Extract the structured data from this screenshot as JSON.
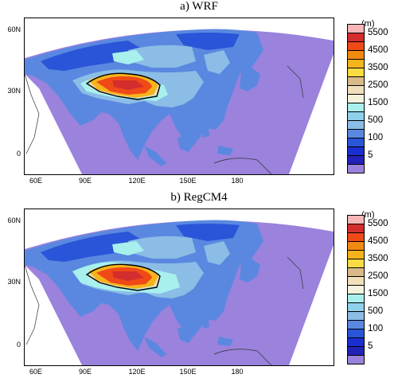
{
  "panels": [
    {
      "title": "a)  WRF",
      "variant": "wrf"
    },
    {
      "title": "b)  RegCM4",
      "variant": "regcm"
    }
  ],
  "axes": {
    "y_ticks": [
      "60N",
      "30N",
      "0"
    ],
    "x_ticks": [
      "60E",
      "90E",
      "120E",
      "150E",
      "180"
    ]
  },
  "legend": {
    "unit": "(m)",
    "bins": [
      {
        "color": "#f7b6b6",
        "label": ""
      },
      {
        "color": "#d42d2d",
        "label": "5500"
      },
      {
        "color": "#ef4a17",
        "label": ""
      },
      {
        "color": "#f28a12",
        "label": "4500"
      },
      {
        "color": "#f6b41c",
        "label": ""
      },
      {
        "color": "#f9dc44",
        "label": "3500"
      },
      {
        "color": "#d9b98a",
        "label": ""
      },
      {
        "color": "#efe0bb",
        "label": "2500"
      },
      {
        "color": "#f4f1dc",
        "label": ""
      },
      {
        "color": "#a7f0ee",
        "label": "1500"
      },
      {
        "color": "#8fd0ea",
        "label": ""
      },
      {
        "color": "#8bbde6",
        "label": "500"
      },
      {
        "color": "#5a88e0",
        "label": ""
      },
      {
        "color": "#2a55d8",
        "label": "100"
      },
      {
        "color": "#1a2fd0",
        "label": ""
      },
      {
        "color": "#2222b8",
        "label": "5"
      },
      {
        "color": "#9a82dd",
        "label": ""
      }
    ]
  },
  "colors": {
    "ocean": "#9a82dd",
    "lowland": "#5a88e0",
    "low_plain": "#2a55d8",
    "hills": "#8bbde6",
    "upland": "#a7f0ee",
    "high": "#efe0bb",
    "mountain": "#f6b41c",
    "peak": "#ef4a17",
    "summit": "#d42d2d",
    "contour": "#000000"
  }
}
